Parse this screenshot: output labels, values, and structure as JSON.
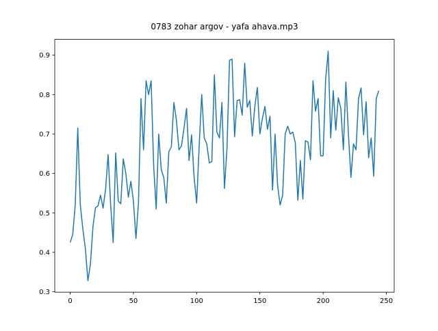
{
  "chart_data": {
    "type": "line",
    "title": "0783 zohar argov - yafa ahava.mp3",
    "x": [
      0,
      2,
      4,
      6,
      8,
      10,
      12,
      14,
      16,
      18,
      20,
      22,
      24,
      26,
      28,
      30,
      32,
      34,
      36,
      38,
      40,
      42,
      44,
      46,
      48,
      50,
      52,
      54,
      56,
      58,
      60,
      62,
      64,
      66,
      68,
      70,
      72,
      74,
      76,
      78,
      80,
      82,
      84,
      86,
      88,
      90,
      92,
      94,
      96,
      98,
      100,
      102,
      104,
      106,
      108,
      110,
      112,
      114,
      116,
      118,
      120,
      122,
      124,
      126,
      128,
      130,
      132,
      134,
      136,
      138,
      140,
      142,
      144,
      146,
      148,
      150,
      152,
      154,
      156,
      158,
      160,
      162,
      164,
      166,
      168,
      170,
      172,
      174,
      176,
      178,
      180,
      182,
      184,
      186,
      188,
      190,
      192,
      194,
      196,
      198,
      200,
      202,
      204,
      206,
      208,
      210,
      212,
      214,
      216,
      218,
      220,
      222,
      224,
      226,
      228,
      230,
      232,
      234,
      236,
      238,
      240,
      242,
      244
    ],
    "series": [
      {
        "color": "#1f77b4",
        "values": [
          0.425,
          0.445,
          0.52,
          0.715,
          0.52,
          0.46,
          0.41,
          0.328,
          0.37,
          0.465,
          0.513,
          0.518,
          0.545,
          0.512,
          0.56,
          0.648,
          0.52,
          0.425,
          0.652,
          0.53,
          0.523,
          0.637,
          0.6,
          0.54,
          0.58,
          0.53,
          0.435,
          0.525,
          0.79,
          0.66,
          0.835,
          0.8,
          0.835,
          0.62,
          0.51,
          0.7,
          0.61,
          0.59,
          0.525,
          0.655,
          0.668,
          0.78,
          0.735,
          0.66,
          0.67,
          0.715,
          0.765,
          0.633,
          0.698,
          0.59,
          0.525,
          0.67,
          0.8,
          0.69,
          0.675,
          0.627,
          0.63,
          0.85,
          0.705,
          0.69,
          0.78,
          0.562,
          0.665,
          0.887,
          0.89,
          0.693,
          0.785,
          0.787,
          0.748,
          0.88,
          0.768,
          0.785,
          0.695,
          0.77,
          0.818,
          0.7,
          0.74,
          0.77,
          0.712,
          0.745,
          0.558,
          0.7,
          0.57,
          0.52,
          0.545,
          0.7,
          0.72,
          0.7,
          0.705,
          0.678,
          0.532,
          0.633,
          0.535,
          0.683,
          0.68,
          0.635,
          0.835,
          0.758,
          0.79,
          0.645,
          0.645,
          0.84,
          0.91,
          0.69,
          0.81,
          0.71,
          0.792,
          0.765,
          0.66,
          0.832,
          0.7,
          0.59,
          0.675,
          0.66,
          0.79,
          0.817,
          0.698,
          0.782,
          0.64,
          0.69,
          0.593,
          0.79,
          0.81
        ]
      }
    ],
    "xlim": [
      -12.2,
      256.2
    ],
    "ylim": [
      0.299,
      0.94
    ],
    "xticks": [
      0,
      50,
      100,
      150,
      200,
      250
    ],
    "yticks": [
      0.3,
      0.4,
      0.5,
      0.6,
      0.7,
      0.8,
      0.9
    ]
  }
}
